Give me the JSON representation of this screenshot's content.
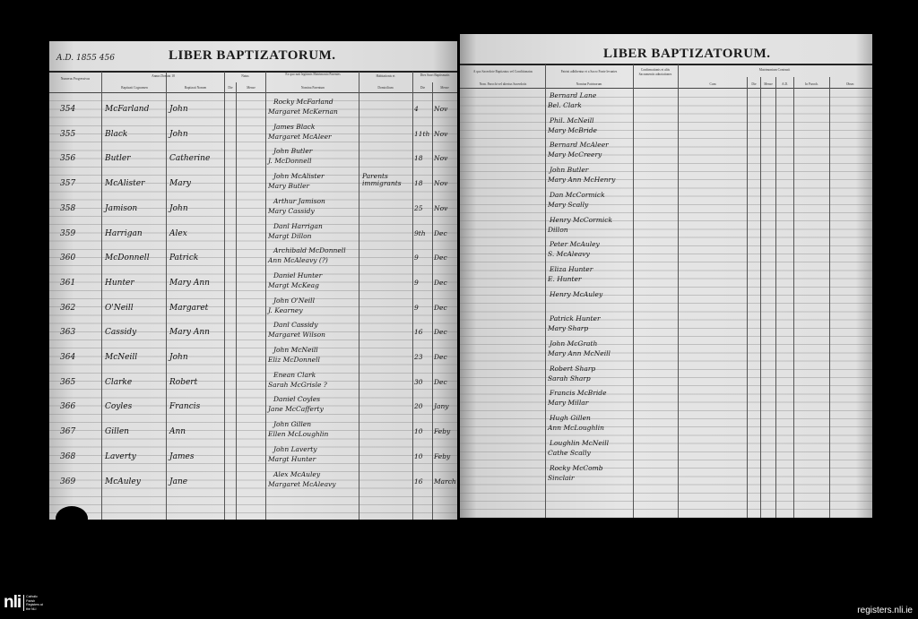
{
  "left_page": {
    "title": "LIBER BAPTIZATORUM.",
    "annotation": "A.D. 1855 456",
    "headers": {
      "numerus": "Numerus Progressivus",
      "annus": "Annus Domini 18",
      "cognomen": "Baptizati Cognomen",
      "nomen": "Baptizati Nomen",
      "natus": "Natus",
      "natus_die": "Die",
      "natus_mense": "Mense",
      "parentes": "Ex quo nati legitimis Matrimonio Parentes",
      "nomina_parentum": "Nomina Parentum",
      "habitationis": "Habitationis et",
      "domicilium": "Domicilium",
      "baptismatis": "Dies Sacri Baptismatis",
      "bapt_die": "Die",
      "bapt_mense": "Mense"
    },
    "entries": [
      {
        "num": "354",
        "surname": "McFarland",
        "name": "John",
        "father": "Rocky McFarland",
        "mother": "Margaret McKernan",
        "residence": "",
        "day": "4",
        "month": "Nov"
      },
      {
        "num": "355",
        "surname": "Black",
        "name": "John",
        "father": "James Black",
        "mother": "Margaret McAleer",
        "residence": "",
        "day": "11th",
        "month": "Nov"
      },
      {
        "num": "356",
        "surname": "Butler",
        "name": "Catherine",
        "father": "John Butler",
        "mother": "J. McDonnell",
        "residence": "",
        "day": "18",
        "month": "Nov"
      },
      {
        "num": "357",
        "surname": "McAlister",
        "name": "Mary",
        "father": "John McAlister",
        "mother": "Mary Butler",
        "residence": "Parents immigrants",
        "day": "18",
        "month": "Nov"
      },
      {
        "num": "358",
        "surname": "Jamison",
        "name": "John",
        "father": "Arthur Jamison",
        "mother": "Mary Cassidy",
        "residence": "",
        "day": "25",
        "month": "Nov"
      },
      {
        "num": "359",
        "surname": "Harrigan",
        "name": "Alex",
        "father": "Danl Harrigan",
        "mother": "Margt Dillon",
        "residence": "",
        "day": "9th",
        "month": "Dec"
      },
      {
        "num": "360",
        "surname": "McDonnell",
        "name": "Patrick",
        "father": "Archibald McDonnell",
        "mother": "Ann McAleavy (?)",
        "residence": "",
        "day": "9",
        "month": "Dec"
      },
      {
        "num": "361",
        "surname": "Hunter",
        "name": "Mary Ann",
        "father": "Daniel Hunter",
        "mother": "Margt McKeag",
        "residence": "",
        "day": "9",
        "month": "Dec"
      },
      {
        "num": "362",
        "surname": "O'Neill",
        "name": "Margaret",
        "father": "John O'Neill",
        "mother": "J. Kearney",
        "residence": "",
        "day": "9",
        "month": "Dec"
      },
      {
        "num": "363",
        "surname": "Cassidy",
        "name": "Mary Ann",
        "father": "Danl Cassidy",
        "mother": "Margaret Wilson",
        "residence": "",
        "day": "16",
        "month": "Dec"
      },
      {
        "num": "364",
        "surname": "McNeill",
        "name": "John",
        "father": "John McNeill",
        "mother": "Eliz McDonnell",
        "residence": "",
        "day": "23",
        "month": "Dec"
      },
      {
        "num": "365",
        "surname": "Clarke",
        "name": "Robert",
        "father": "Enean Clark",
        "mother": "Sarah McGrisle ?",
        "residence": "",
        "day": "30",
        "month": "Dec"
      },
      {
        "num": "366",
        "surname": "Coyles",
        "name": "Francis",
        "father": "Daniel Coyles",
        "mother": "Jane McCafferty",
        "residence": "",
        "day": "20",
        "month": "Jany"
      },
      {
        "num": "367",
        "surname": "Gillen",
        "name": "Ann",
        "father": "John Gillen",
        "mother": "Ellen McLoughlin",
        "residence": "",
        "day": "10",
        "month": "Feby"
      },
      {
        "num": "368",
        "surname": "Laverty",
        "name": "James",
        "father": "John Laverty",
        "mother": "Margt Hunter",
        "residence": "",
        "day": "10",
        "month": "Feby"
      },
      {
        "num": "369",
        "surname": "McAuley",
        "name": "Jane",
        "father": "Alex McAuley",
        "mother": "Margaret McAleavy",
        "residence": "",
        "day": "16",
        "month": "March"
      }
    ]
  },
  "right_page": {
    "title": "LIBER BAPTIZATORUM.",
    "headers": {
      "sacerdos": "A quo Sacerdote Baptizatus vel Conditionatus",
      "sacerdos_sub": "Nom. Parochi vel alterius Sacerdotis",
      "patrini": "Patrini adhibentur et a Sacro Fonte levantes",
      "nomina_patrinorum": "Nomina Patrinorum",
      "notes": "Confirmationis et aliis Sacramentis adnotationes",
      "matrimonium": "Matrimonium Contraxit",
      "cum": "Cum",
      "die": "Die",
      "mense": "Mense",
      "ad": "A.D.",
      "paroch": "In Paroch.",
      "obser": "Obser."
    },
    "sponsors": [
      {
        "godfather": "Bernard Lane",
        "godmother": "Bel. Clark"
      },
      {
        "godfather": "Phil. McNeill",
        "godmother": "Mary McBride"
      },
      {
        "godfather": "Bernard McAleer",
        "godmother": "Mary McCreery"
      },
      {
        "godfather": "John Butler",
        "godmother": "Mary Ann McHenry"
      },
      {
        "godfather": "Dan McCormick",
        "godmother": "Mary Scally"
      },
      {
        "godfather": "Henry McCormick",
        "godmother": "Dillon"
      },
      {
        "godfather": "Peter McAuley",
        "godmother": "S. McAleavy"
      },
      {
        "godfather": "Eliza Hunter",
        "godmother": "E. Hunter"
      },
      {
        "godfather": "Henry McAuley",
        "godmother": ""
      },
      {
        "godfather": "Patrick Hunter",
        "godmother": "Mary Sharp"
      },
      {
        "godfather": "John McGrath",
        "godmother": "Mary Ann McNeill"
      },
      {
        "godfather": "Robert Sharp",
        "godmother": "Sarah Sharp"
      },
      {
        "godfather": "Francis McBride",
        "godmother": "Mary Millar"
      },
      {
        "godfather": "Hugh Gillen",
        "godmother": "Ann McLoughlin"
      },
      {
        "godfather": "Loughlin McNeill",
        "godmother": "Cathe Scally"
      },
      {
        "godfather": "Rocky McComb",
        "godmother": "Sinclair"
      }
    ]
  },
  "footer": {
    "logo_mark": "nli",
    "logo_text": "Catholic Parish Registers at the NLI",
    "site": "registers.nli.ie"
  }
}
